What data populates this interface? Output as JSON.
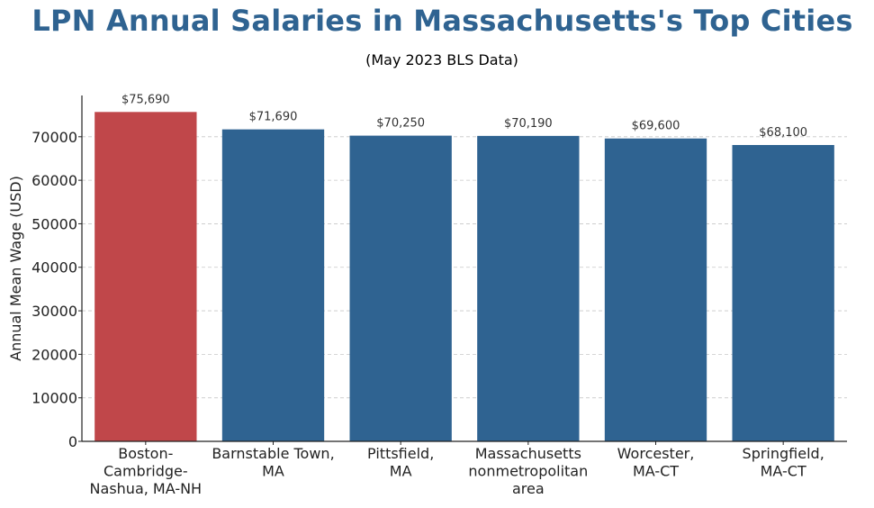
{
  "chart_data": {
    "type": "bar",
    "title": "LPN Annual Salaries in Massachusetts's Top Cities",
    "subtitle": "(May 2023 BLS Data)",
    "xlabel": "",
    "ylabel": "Annual Mean Wage (USD)",
    "categories": [
      "Boston-Cambridge-Nashua, MA-NH",
      "Barnstable Town, MA",
      "Pittsfield, MA",
      "Massachusetts nonmetropolitan area",
      "Worcester, MA-CT",
      "Springfield, MA-CT"
    ],
    "category_lines": [
      [
        "Boston-",
        "Cambridge-",
        "Nashua, MA-NH"
      ],
      [
        "Barnstable Town,",
        "MA"
      ],
      [
        "Pittsfield,",
        "MA"
      ],
      [
        "Massachusetts",
        "nonmetropolitan",
        "area"
      ],
      [
        "Worcester,",
        "MA-CT"
      ],
      [
        "Springfield,",
        "MA-CT"
      ]
    ],
    "values": [
      75690,
      71690,
      70250,
      70190,
      69600,
      68100
    ],
    "data_labels": [
      "$75,690",
      "$71,690",
      "$70,250",
      "$70,190",
      "$69,600",
      "$68,100"
    ],
    "bar_colors": [
      "#c0474a",
      "#2f6391",
      "#2f6391",
      "#2f6391",
      "#2f6391",
      "#2f6391"
    ],
    "ylim": [
      0,
      79482
    ],
    "yticks": [
      0,
      10000,
      20000,
      30000,
      40000,
      50000,
      60000,
      70000
    ],
    "ytick_labels": [
      "0",
      "10000",
      "20000",
      "30000",
      "40000",
      "50000",
      "60000",
      "70000"
    ],
    "grid": true,
    "grid_axis": "y",
    "legend": "none"
  }
}
